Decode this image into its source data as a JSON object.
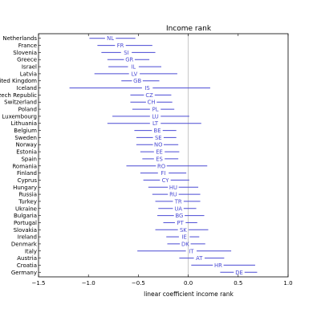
{
  "chart_data": {
    "type": "errorbar",
    "title": "Income rank",
    "xlabel": "linear coefficient income rank",
    "ylabel": "",
    "xlim": [
      -1.5,
      1.0
    ],
    "xticks": [
      {
        "value": -1.5,
        "label": "−1.5"
      },
      {
        "value": -1.0,
        "label": "−1.0"
      },
      {
        "value": -0.5,
        "label": "−0.5"
      },
      {
        "value": 0.0,
        "label": "0.0"
      },
      {
        "value": 0.5,
        "label": "0.5"
      },
      {
        "value": 1.0,
        "label": "1.0"
      }
    ],
    "zero_line": true,
    "line_color": "#4a4ad4",
    "label_color": "#4a4ad4",
    "items": [
      {
        "country": "Netherlands",
        "code": "NL",
        "estimate": -0.78,
        "low": -0.99,
        "high": -0.53
      },
      {
        "country": "France",
        "code": "FR",
        "estimate": -0.68,
        "low": -0.91,
        "high": -0.36
      },
      {
        "country": "Slovenia",
        "code": "SI",
        "estimate": -0.62,
        "low": -0.87,
        "high": -0.33
      },
      {
        "country": "Greece",
        "code": "GR",
        "estimate": -0.59,
        "low": -0.81,
        "high": -0.39
      },
      {
        "country": "Israel",
        "code": "IL",
        "estimate": -0.55,
        "low": -0.8,
        "high": -0.27
      },
      {
        "country": "Latvia",
        "code": "LV",
        "estimate": -0.54,
        "low": -0.94,
        "high": -0.11
      },
      {
        "country": "United Kingdom",
        "code": "GB",
        "estimate": -0.51,
        "low": -0.67,
        "high": -0.29
      },
      {
        "country": "Iceland",
        "code": "IS",
        "estimate": -0.41,
        "low": -1.19,
        "high": 0.22
      },
      {
        "country": "Czech Republic",
        "code": "CZ",
        "estimate": -0.39,
        "low": -0.58,
        "high": -0.17
      },
      {
        "country": "Switzerland",
        "code": "CH",
        "estimate": -0.37,
        "low": -0.58,
        "high": -0.16
      },
      {
        "country": "Poland",
        "code": "PL",
        "estimate": -0.33,
        "low": -0.56,
        "high": -0.14
      },
      {
        "country": "Luxembourg",
        "code": "LU",
        "estimate": -0.33,
        "low": -0.76,
        "high": 0.01
      },
      {
        "country": "Lithuania",
        "code": "LT",
        "estimate": -0.33,
        "low": -0.81,
        "high": 0.13
      },
      {
        "country": "Belgium",
        "code": "BE",
        "estimate": -0.31,
        "low": -0.54,
        "high": -0.12
      },
      {
        "country": "Sweden",
        "code": "SE",
        "estimate": -0.3,
        "low": -0.52,
        "high": -0.12
      },
      {
        "country": "Norway",
        "code": "NO",
        "estimate": -0.3,
        "low": -0.52,
        "high": -0.1
      },
      {
        "country": "Estonia",
        "code": "EE",
        "estimate": -0.29,
        "low": -0.48,
        "high": -0.09
      },
      {
        "country": "Spain",
        "code": "ES",
        "estimate": -0.29,
        "low": -0.46,
        "high": -0.1
      },
      {
        "country": "Romania",
        "code": "RO",
        "estimate": -0.27,
        "low": -0.62,
        "high": 0.19
      },
      {
        "country": "Finland",
        "code": "FI",
        "estimate": -0.25,
        "low": -0.48,
        "high": -0.02
      },
      {
        "country": "Cyprus",
        "code": "CY",
        "estimate": -0.23,
        "low": -0.45,
        "high": 0.01
      },
      {
        "country": "Hungary",
        "code": "HU",
        "estimate": -0.15,
        "low": -0.4,
        "high": 0.1
      },
      {
        "country": "Russia",
        "code": "RU",
        "estimate": -0.15,
        "low": -0.36,
        "high": 0.12
      },
      {
        "country": "Turkey",
        "code": "TR",
        "estimate": -0.1,
        "low": -0.33,
        "high": 0.12
      },
      {
        "country": "Ukraine",
        "code": "UA",
        "estimate": -0.1,
        "low": -0.3,
        "high": 0.08
      },
      {
        "country": "Bulgaria",
        "code": "BG",
        "estimate": -0.09,
        "low": -0.31,
        "high": 0.16
      },
      {
        "country": "Portugal",
        "code": "PT",
        "estimate": -0.08,
        "low": -0.25,
        "high": 0.09
      },
      {
        "country": "Slovakia",
        "code": "SK",
        "estimate": -0.05,
        "low": -0.33,
        "high": 0.2
      },
      {
        "country": "Ireland",
        "code": "IE",
        "estimate": -0.04,
        "low": -0.22,
        "high": 0.11
      },
      {
        "country": "Denmark",
        "code": "DK",
        "estimate": -0.03,
        "low": -0.21,
        "high": 0.17
      },
      {
        "country": "Italy",
        "code": "IT",
        "estimate": 0.03,
        "low": -0.51,
        "high": 0.43
      },
      {
        "country": "Austria",
        "code": "AT",
        "estimate": 0.11,
        "low": -0.09,
        "high": 0.36
      },
      {
        "country": "Croatia",
        "code": "HR",
        "estimate": 0.3,
        "low": 0.03,
        "high": 0.67
      },
      {
        "country": "Germany",
        "code": "DE",
        "estimate": 0.51,
        "low": 0.32,
        "high": 0.69
      }
    ]
  }
}
